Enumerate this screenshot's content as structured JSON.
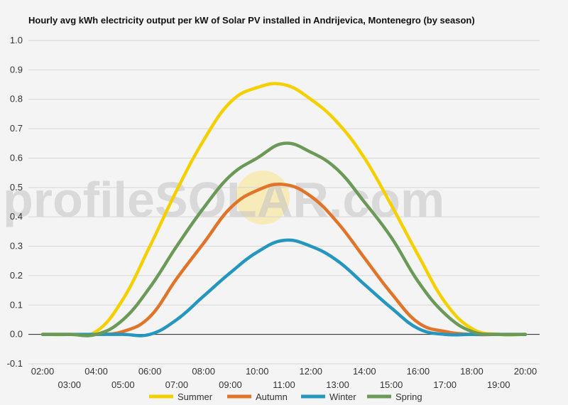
{
  "chart_data": {
    "type": "line",
    "title": "Hourly avg kWh electricity output per kW of Solar PV installed in Andrijevica, Montenegro (by season)",
    "xlabel": "",
    "ylabel": "",
    "ylim": [
      -0.1,
      1.0
    ],
    "yticks": [
      "-0.1",
      "0.0",
      "0.1",
      "0.2",
      "0.3",
      "0.4",
      "0.5",
      "0.6",
      "0.7",
      "0.8",
      "0.9",
      "1.0"
    ],
    "grid": true,
    "legend_position": "bottom",
    "x": [
      "02:00",
      "03:00",
      "04:00",
      "05:00",
      "06:00",
      "07:00",
      "08:00",
      "09:00",
      "10:00",
      "11:00",
      "12:00",
      "13:00",
      "14:00",
      "15:00",
      "16:00",
      "17:00",
      "18:00",
      "19:00",
      "20:00"
    ],
    "series": [
      {
        "name": "Summer",
        "color": "#f5d000",
        "values": [
          0,
          0,
          0.01,
          0.12,
          0.3,
          0.49,
          0.66,
          0.79,
          0.84,
          0.85,
          0.8,
          0.72,
          0.6,
          0.44,
          0.27,
          0.11,
          0.02,
          0,
          0
        ]
      },
      {
        "name": "Autumn",
        "color": "#e07428",
        "values": [
          0,
          0,
          0,
          0.01,
          0.06,
          0.19,
          0.31,
          0.43,
          0.49,
          0.51,
          0.47,
          0.38,
          0.26,
          0.14,
          0.04,
          0.01,
          0,
          0,
          0
        ]
      },
      {
        "name": "Winter",
        "color": "#2596be",
        "values": [
          0,
          0,
          0,
          0,
          0,
          0.05,
          0.13,
          0.21,
          0.28,
          0.32,
          0.3,
          0.25,
          0.17,
          0.09,
          0.02,
          0,
          0,
          0,
          0
        ]
      },
      {
        "name": "Spring",
        "color": "#6b9a58",
        "values": [
          0,
          0,
          0,
          0.05,
          0.16,
          0.3,
          0.43,
          0.54,
          0.6,
          0.65,
          0.62,
          0.56,
          0.45,
          0.33,
          0.18,
          0.07,
          0.01,
          0,
          0
        ]
      }
    ]
  },
  "watermark": {
    "text_before": "profileS",
    "text_o": "O",
    "text_after": "LAR.com",
    "sun_color": "#fbe38a"
  }
}
